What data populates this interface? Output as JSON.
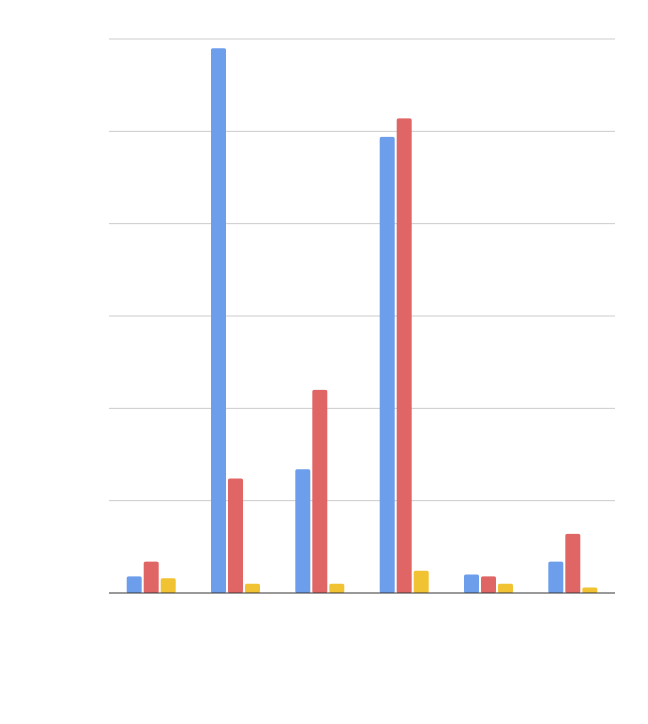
{
  "chart_data": {
    "type": "bar",
    "title": "",
    "xlabel": "",
    "ylabel": "",
    "categories": [
      "",
      "",
      "",
      "",
      "",
      ""
    ],
    "ylim": [
      0,
      30
    ],
    "grid": true,
    "series": [
      {
        "color": "#6d9eeb",
        "values": [
          0.9,
          29.5,
          6.7,
          24.7,
          1.0,
          1.7
        ]
      },
      {
        "color": "#e06666",
        "values": [
          1.7,
          6.2,
          11.0,
          25.7,
          0.9,
          3.2
        ]
      },
      {
        "color": "#f1c232",
        "values": [
          0.8,
          0.5,
          0.5,
          1.2,
          0.5,
          0.3
        ]
      }
    ]
  }
}
